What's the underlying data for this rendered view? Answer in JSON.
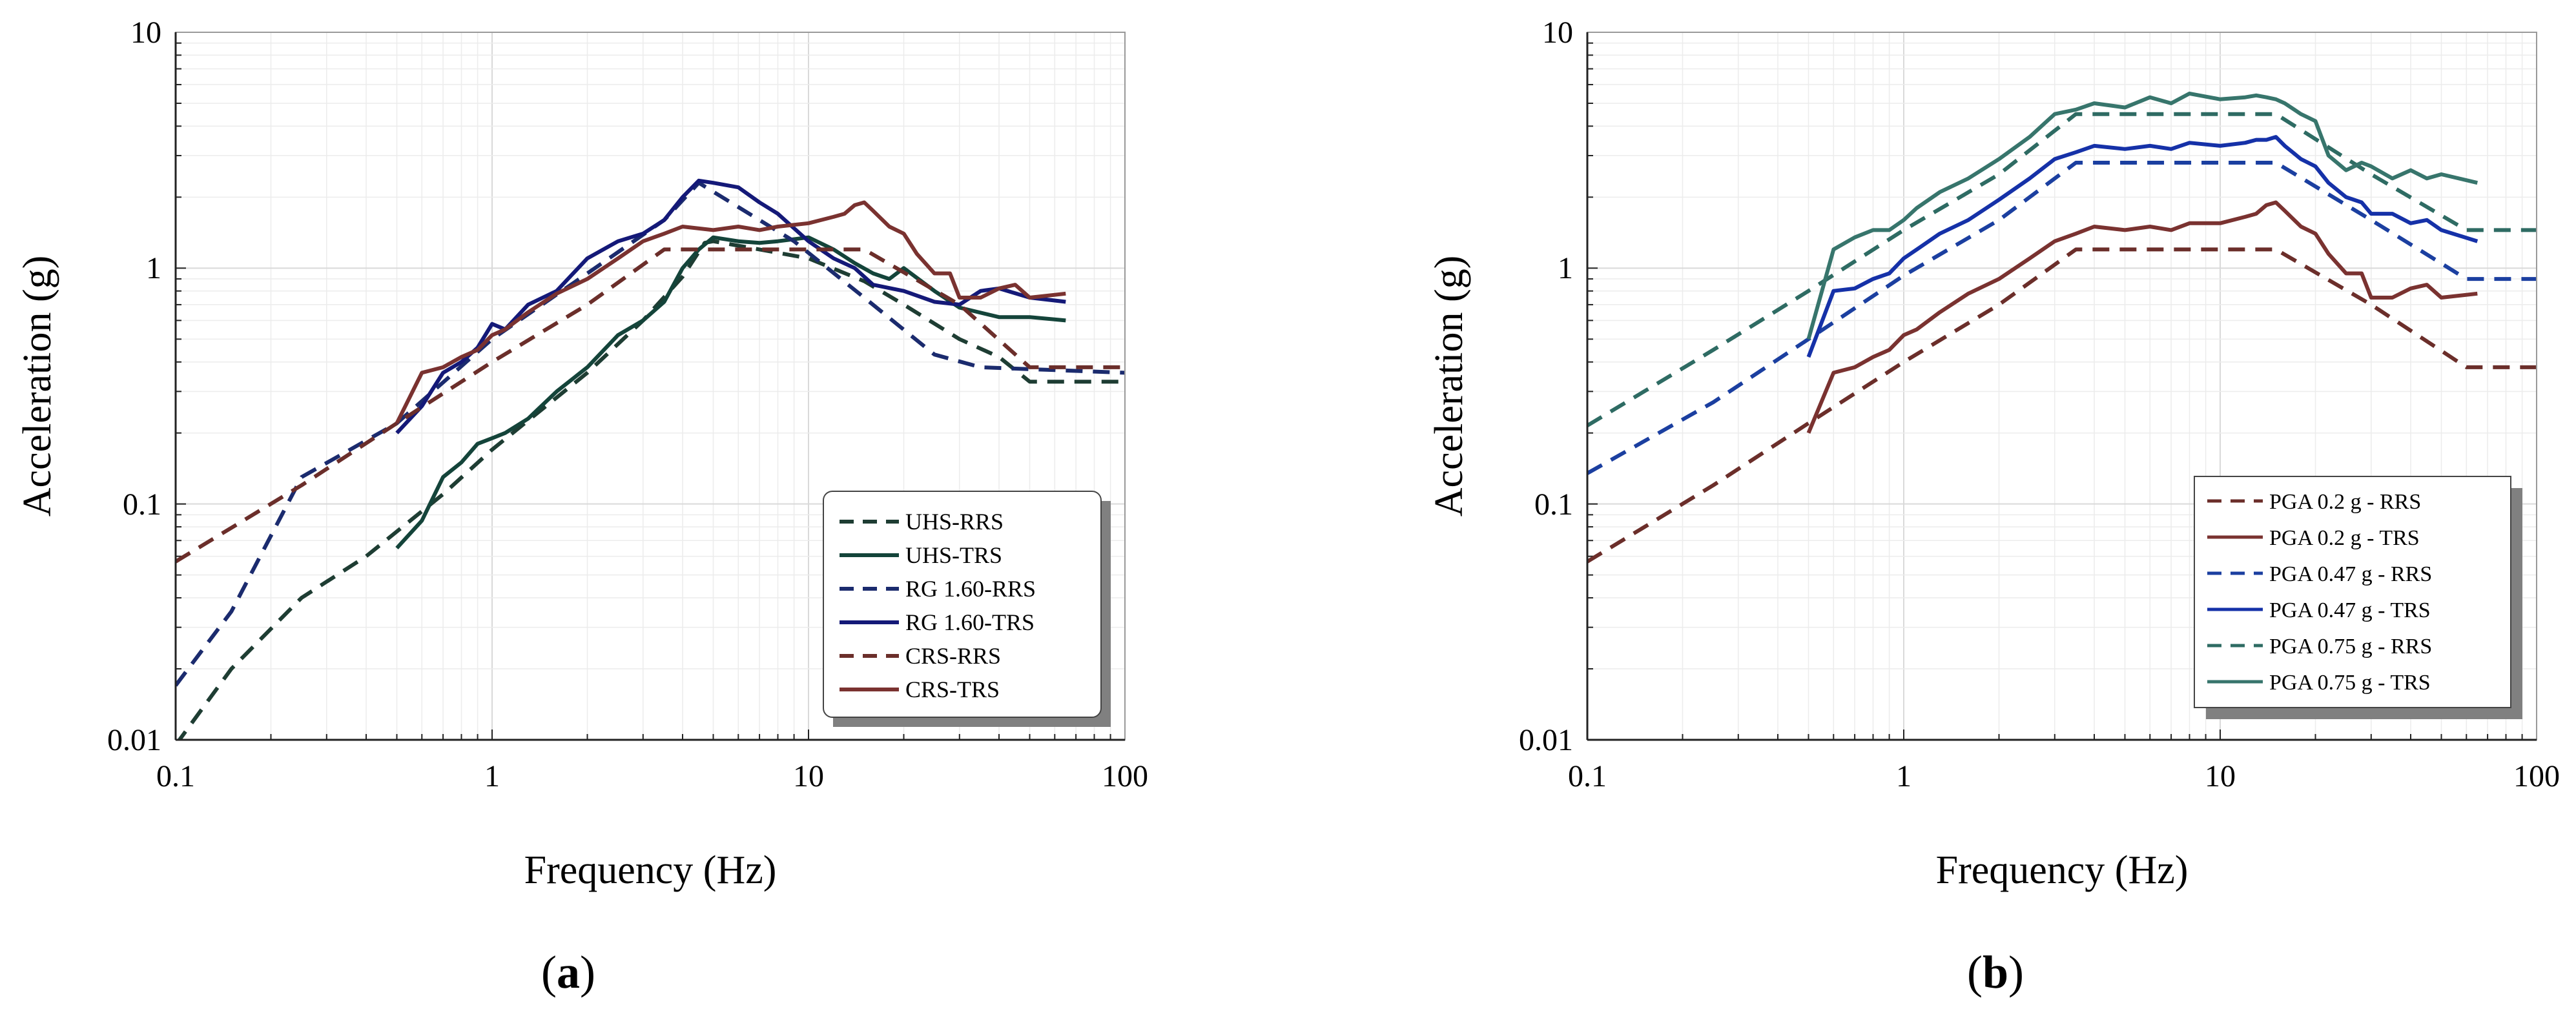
{
  "panels": [
    {
      "id": "a",
      "caption_label": "a",
      "caption_open": "(",
      "caption_close": ")"
    },
    {
      "id": "b",
      "caption_label": "b",
      "caption_open": "(",
      "caption_close": ")"
    }
  ],
  "chart_data": [
    {
      "type": "line",
      "title": "",
      "xlabel": "Frequency (Hz)",
      "ylabel": "Acceleration (g)",
      "xscale": "log",
      "yscale": "log",
      "xlim": [
        0.1,
        100
      ],
      "ylim": [
        0.01,
        10
      ],
      "x_ticks": [
        0.1,
        1,
        10,
        100
      ],
      "x_tick_labels": [
        "0.1",
        "1",
        "10",
        "100"
      ],
      "y_ticks": [
        0.01,
        0.1,
        1,
        10
      ],
      "y_tick_labels": [
        "0.01",
        "0.1",
        "1",
        "10"
      ],
      "grid": true,
      "legend_position": "bottom-right",
      "series": [
        {
          "name": "UHS-RRS",
          "color": "#1e3d33",
          "dash": "dashed",
          "x": [
            0.1,
            0.15,
            0.25,
            0.4,
            0.7,
            1,
            2,
            3,
            4,
            4.7,
            5,
            7,
            10,
            15,
            20,
            30,
            40,
            50,
            100
          ],
          "y": [
            0.0095,
            0.02,
            0.04,
            0.06,
            0.11,
            0.17,
            0.36,
            0.6,
            0.92,
            1.28,
            1.3,
            1.2,
            1.1,
            0.88,
            0.7,
            0.5,
            0.42,
            0.33,
            0.33
          ]
        },
        {
          "name": "UHS-TRS",
          "color": "#14443a",
          "dash": "solid",
          "x": [
            0.5,
            0.6,
            0.7,
            0.8,
            0.9,
            1.0,
            1.1,
            1.3,
            1.6,
            2,
            2.5,
            3,
            3.5,
            4,
            4.5,
            5,
            6,
            7,
            8,
            10,
            12,
            14,
            16,
            18,
            20,
            25,
            30,
            40,
            50,
            65
          ],
          "y": [
            0.065,
            0.085,
            0.13,
            0.15,
            0.18,
            0.19,
            0.2,
            0.23,
            0.3,
            0.38,
            0.52,
            0.6,
            0.72,
            1.0,
            1.2,
            1.35,
            1.3,
            1.28,
            1.3,
            1.35,
            1.2,
            1.05,
            0.95,
            0.9,
            1.0,
            0.8,
            0.68,
            0.62,
            0.62,
            0.6
          ]
        },
        {
          "name": "RG 1.60-RRS",
          "color": "#1b2b6e",
          "dash": "dashed",
          "x": [
            0.1,
            0.15,
            0.25,
            0.5,
            1,
            2,
            3.5,
            4.5,
            9,
            15,
            25,
            35,
            100
          ],
          "y": [
            0.017,
            0.035,
            0.13,
            0.22,
            0.5,
            0.95,
            1.6,
            2.3,
            1.3,
            0.75,
            0.43,
            0.38,
            0.36
          ]
        },
        {
          "name": "RG 1.60-TRS",
          "color": "#141978",
          "dash": "solid",
          "x": [
            0.5,
            0.6,
            0.7,
            0.8,
            0.9,
            1.0,
            1.1,
            1.3,
            1.6,
            2,
            2.5,
            3,
            3.5,
            4,
            4.5,
            5,
            6,
            7,
            8,
            10,
            12,
            14,
            16,
            20,
            25,
            30,
            35,
            40,
            50,
            65
          ],
          "y": [
            0.2,
            0.26,
            0.36,
            0.4,
            0.46,
            0.58,
            0.55,
            0.7,
            0.8,
            1.1,
            1.3,
            1.4,
            1.6,
            2.0,
            2.35,
            2.3,
            2.2,
            1.9,
            1.7,
            1.3,
            1.1,
            1.0,
            0.85,
            0.8,
            0.72,
            0.7,
            0.8,
            0.82,
            0.75,
            0.72
          ]
        },
        {
          "name": "CRS-RRS",
          "color": "#6b2e2a",
          "dash": "dashed",
          "x": [
            0.1,
            0.25,
            0.5,
            1,
            2,
            3.5,
            15,
            30,
            50,
            100
          ],
          "y": [
            0.057,
            0.12,
            0.22,
            0.4,
            0.7,
            1.2,
            1.2,
            0.7,
            0.38,
            0.38
          ]
        },
        {
          "name": "CRS-TRS",
          "color": "#7a3230",
          "dash": "solid",
          "x": [
            0.5,
            0.6,
            0.7,
            0.8,
            0.9,
            1.0,
            1.1,
            1.3,
            1.6,
            2,
            2.5,
            3,
            3.5,
            4,
            5,
            6,
            7,
            8,
            10,
            12,
            13,
            14,
            15,
            16,
            18,
            20,
            22,
            25,
            28,
            30,
            35,
            40,
            45,
            50,
            65
          ],
          "y": [
            0.22,
            0.36,
            0.38,
            0.42,
            0.45,
            0.52,
            0.55,
            0.65,
            0.78,
            0.9,
            1.1,
            1.3,
            1.4,
            1.5,
            1.45,
            1.5,
            1.45,
            1.5,
            1.55,
            1.65,
            1.7,
            1.85,
            1.9,
            1.75,
            1.5,
            1.4,
            1.15,
            0.95,
            0.95,
            0.75,
            0.75,
            0.82,
            0.85,
            0.75,
            0.78
          ]
        }
      ]
    },
    {
      "type": "line",
      "title": "",
      "xlabel": "Frequency (Hz)",
      "ylabel": "Acceleration (g)",
      "xscale": "log",
      "yscale": "log",
      "xlim": [
        0.1,
        100
      ],
      "ylim": [
        0.01,
        10
      ],
      "x_ticks": [
        0.1,
        1,
        10,
        100
      ],
      "x_tick_labels": [
        "0.1",
        "1",
        "10",
        "100"
      ],
      "y_ticks": [
        0.01,
        0.1,
        1,
        10
      ],
      "y_tick_labels": [
        "0.01",
        "0.1",
        "1",
        "10"
      ],
      "grid": true,
      "legend_position": "bottom-right",
      "series": [
        {
          "name": "PGA 0.2 g - RRS",
          "color": "#6b2e2a",
          "dash": "dashed",
          "x": [
            0.1,
            0.25,
            0.5,
            1,
            2,
            3.5,
            15,
            30,
            60,
            100
          ],
          "y": [
            0.057,
            0.12,
            0.22,
            0.4,
            0.7,
            1.2,
            1.2,
            0.7,
            0.38,
            0.38
          ]
        },
        {
          "name": "PGA 0.2 g - TRS",
          "color": "#7a3230",
          "dash": "solid",
          "x": [
            0.5,
            0.6,
            0.7,
            0.8,
            0.9,
            1.0,
            1.1,
            1.3,
            1.6,
            2,
            2.5,
            3,
            3.5,
            4,
            5,
            6,
            7,
            8,
            10,
            12,
            13,
            14,
            15,
            16,
            18,
            20,
            22,
            25,
            28,
            30,
            35,
            40,
            45,
            50,
            65
          ],
          "y": [
            0.2,
            0.36,
            0.38,
            0.42,
            0.45,
            0.52,
            0.55,
            0.65,
            0.78,
            0.9,
            1.1,
            1.3,
            1.4,
            1.5,
            1.45,
            1.5,
            1.45,
            1.55,
            1.55,
            1.65,
            1.7,
            1.85,
            1.9,
            1.75,
            1.5,
            1.4,
            1.15,
            0.95,
            0.95,
            0.75,
            0.75,
            0.82,
            0.85,
            0.75,
            0.78
          ]
        },
        {
          "name": "PGA 0.47 g - RRS",
          "color": "#1b3fa0",
          "dash": "dashed",
          "x": [
            0.1,
            0.25,
            0.5,
            1,
            2,
            3.5,
            15,
            30,
            60,
            100
          ],
          "y": [
            0.135,
            0.27,
            0.5,
            0.93,
            1.6,
            2.8,
            2.8,
            1.6,
            0.9,
            0.9
          ]
        },
        {
          "name": "PGA 0.47 g - TRS",
          "color": "#1531a8",
          "dash": "solid",
          "x": [
            0.5,
            0.6,
            0.7,
            0.8,
            0.9,
            1.0,
            1.1,
            1.3,
            1.6,
            2,
            2.5,
            3,
            3.5,
            4,
            5,
            6,
            7,
            8,
            10,
            12,
            13,
            14,
            15,
            16,
            18,
            20,
            22,
            25,
            28,
            30,
            35,
            40,
            45,
            50,
            65
          ],
          "y": [
            0.42,
            0.8,
            0.82,
            0.9,
            0.95,
            1.1,
            1.2,
            1.4,
            1.6,
            1.95,
            2.4,
            2.9,
            3.1,
            3.3,
            3.2,
            3.3,
            3.2,
            3.4,
            3.3,
            3.4,
            3.5,
            3.5,
            3.6,
            3.3,
            2.9,
            2.7,
            2.3,
            2.0,
            1.9,
            1.7,
            1.7,
            1.55,
            1.6,
            1.45,
            1.3
          ]
        },
        {
          "name": "PGA 0.75 g - RRS",
          "color": "#2e6b63",
          "dash": "dashed",
          "x": [
            0.1,
            0.25,
            0.5,
            1,
            2,
            3.5,
            15,
            30,
            60,
            100
          ],
          "y": [
            0.215,
            0.45,
            0.8,
            1.45,
            2.5,
            4.5,
            4.5,
            2.5,
            1.45,
            1.45
          ]
        },
        {
          "name": "PGA 0.75 g - TRS",
          "color": "#37756c",
          "dash": "solid",
          "x": [
            0.5,
            0.6,
            0.7,
            0.8,
            0.9,
            1.0,
            1.1,
            1.3,
            1.6,
            2,
            2.5,
            3,
            3.5,
            4,
            5,
            6,
            7,
            8,
            10,
            12,
            13,
            14,
            15,
            16,
            18,
            20,
            22,
            25,
            28,
            30,
            35,
            40,
            45,
            50,
            65
          ],
          "y": [
            0.5,
            1.2,
            1.35,
            1.45,
            1.45,
            1.6,
            1.8,
            2.1,
            2.4,
            2.9,
            3.6,
            4.5,
            4.7,
            5.0,
            4.8,
            5.3,
            5.0,
            5.5,
            5.2,
            5.3,
            5.4,
            5.3,
            5.2,
            5.0,
            4.5,
            4.2,
            3.0,
            2.6,
            2.8,
            2.7,
            2.4,
            2.6,
            2.4,
            2.5,
            2.3
          ]
        }
      ]
    }
  ]
}
